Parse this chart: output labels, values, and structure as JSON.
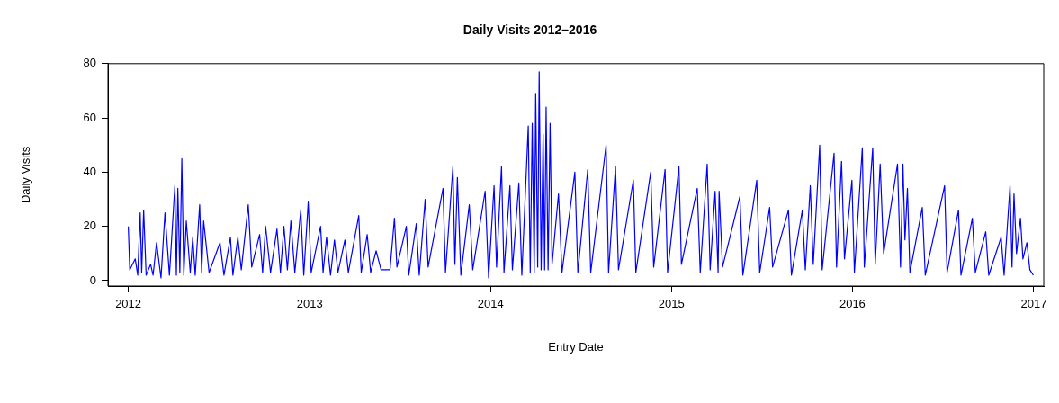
{
  "chart_data": {
    "type": "line",
    "title": "Daily Visits 2012–2016",
    "xlabel": "Entry Date",
    "ylabel": "Daily Visits",
    "xlim": [
      "2011-11-21",
      "2017-01-21"
    ],
    "ylim": [
      -2,
      80
    ],
    "yticks": [
      0,
      20,
      40,
      60,
      80
    ],
    "xticks": [
      {
        "value": "2012-01-01",
        "label": "2012"
      },
      {
        "value": "2013-01-01",
        "label": "2013"
      },
      {
        "value": "2014-01-01",
        "label": "2014"
      },
      {
        "value": "2015-01-01",
        "label": "2015"
      },
      {
        "value": "2016-01-01",
        "label": "2016"
      },
      {
        "value": "2017-01-01",
        "label": "2017"
      }
    ],
    "marker": "none",
    "line_style": "solid",
    "legend": false,
    "series": [
      {
        "color": "#0000ff",
        "x": [
          "2012-01-01",
          "2012-01-04",
          "2012-01-15",
          "2012-01-20",
          "2012-01-25",
          "2012-01-28",
          "2012-02-01",
          "2012-02-06",
          "2012-02-15",
          "2012-02-20",
          "2012-02-27",
          "2012-03-07",
          "2012-03-15",
          "2012-03-24",
          "2012-04-04",
          "2012-04-07",
          "2012-04-10",
          "2012-04-14",
          "2012-04-18",
          "2012-04-22",
          "2012-04-27",
          "2012-05-05",
          "2012-05-10",
          "2012-05-15",
          "2012-05-24",
          "2012-05-28",
          "2012-06-01",
          "2012-06-12",
          "2012-07-04",
          "2012-07-12",
          "2012-07-25",
          "2012-07-30",
          "2012-08-09",
          "2012-08-16",
          "2012-08-30",
          "2012-09-06",
          "2012-09-22",
          "2012-09-28",
          "2012-10-04",
          "2012-10-14",
          "2012-10-27",
          "2012-11-03",
          "2012-11-10",
          "2012-11-17",
          "2012-11-24",
          "2012-12-02",
          "2012-12-14",
          "2012-12-20",
          "2012-12-29",
          "2013-01-04",
          "2013-01-23",
          "2013-01-28",
          "2013-02-04",
          "2013-02-12",
          "2013-02-20",
          "2013-02-27",
          "2013-03-13",
          "2013-03-20",
          "2013-04-10",
          "2013-04-15",
          "2013-04-27",
          "2013-05-04",
          "2013-05-15",
          "2013-05-25",
          "2013-06-12",
          "2013-06-21",
          "2013-06-26",
          "2013-07-15",
          "2013-07-20",
          "2013-08-04",
          "2013-08-10",
          "2013-08-22",
          "2013-08-28",
          "2013-09-27",
          "2013-10-02",
          "2013-10-17",
          "2013-10-21",
          "2013-10-26",
          "2013-11-02",
          "2013-11-19",
          "2013-11-26",
          "2013-12-21",
          "2013-12-28",
          "2014-01-08",
          "2014-01-13",
          "2014-01-23",
          "2014-01-28",
          "2014-02-09",
          "2014-02-14",
          "2014-02-27",
          "2014-03-05",
          "2014-03-18",
          "2014-03-22",
          "2014-03-26",
          "2014-03-30",
          "2014-04-02",
          "2014-04-06",
          "2014-04-09",
          "2014-04-13",
          "2014-04-17",
          "2014-04-20",
          "2014-04-23",
          "2014-04-27",
          "2014-05-01",
          "2014-05-05",
          "2014-05-18",
          "2014-05-25",
          "2014-06-20",
          "2014-06-26",
          "2014-07-16",
          "2014-07-22",
          "2014-08-22",
          "2014-08-27",
          "2014-09-10",
          "2014-09-16",
          "2014-10-16",
          "2014-10-21",
          "2014-11-20",
          "2014-11-26",
          "2014-12-19",
          "2014-12-24",
          "2015-01-16",
          "2015-01-21",
          "2015-02-22",
          "2015-02-28",
          "2015-03-14",
          "2015-03-20",
          "2015-03-30",
          "2015-04-05",
          "2015-04-07",
          "2015-04-14",
          "2015-05-19",
          "2015-05-25",
          "2015-06-22",
          "2015-06-28",
          "2015-07-18",
          "2015-07-24",
          "2015-08-25",
          "2015-08-31",
          "2015-09-22",
          "2015-09-28",
          "2015-10-08",
          "2015-10-14",
          "2015-10-27",
          "2015-11-01",
          "2015-11-25",
          "2015-11-30",
          "2015-12-10",
          "2015-12-16",
          "2015-12-31",
          "2016-01-05",
          "2016-01-21",
          "2016-01-25",
          "2016-02-11",
          "2016-02-16",
          "2016-02-26",
          "2016-03-04",
          "2016-04-01",
          "2016-04-07",
          "2016-04-12",
          "2016-04-16",
          "2016-04-21",
          "2016-04-26",
          "2016-05-21",
          "2016-05-27",
          "2016-07-05",
          "2016-07-10",
          "2016-08-02",
          "2016-08-07",
          "2016-08-30",
          "2016-09-05",
          "2016-09-26",
          "2016-10-02",
          "2016-10-27",
          "2016-11-02",
          "2016-11-14",
          "2016-11-18",
          "2016-11-22",
          "2016-11-27",
          "2016-12-05",
          "2016-12-10",
          "2016-12-18",
          "2016-12-24",
          "2016-12-31"
        ],
        "values": [
          20,
          4,
          8,
          2,
          25,
          3,
          26,
          2,
          6,
          2,
          14,
          1,
          25,
          2,
          35,
          2,
          34,
          3,
          45,
          2,
          22,
          3,
          16,
          2,
          28,
          3,
          22,
          3,
          14,
          2,
          16,
          2,
          16,
          4,
          28,
          5,
          17,
          3,
          20,
          3,
          19,
          3,
          20,
          4,
          22,
          3,
          26,
          2,
          29,
          3,
          20,
          3,
          16,
          2,
          15,
          3,
          15,
          3,
          24,
          3,
          17,
          3,
          11,
          4,
          4,
          23,
          5,
          20,
          2,
          21,
          2,
          30,
          5,
          34,
          3,
          42,
          6,
          38,
          2,
          28,
          4,
          33,
          1,
          35,
          5,
          42,
          3,
          35,
          4,
          36,
          2,
          57,
          3,
          58,
          3,
          69,
          5,
          77,
          4,
          54,
          4,
          64,
          4,
          58,
          6,
          32,
          3,
          40,
          3,
          41,
          3,
          50,
          3,
          42,
          4,
          37,
          3,
          40,
          5,
          41,
          3,
          42,
          6,
          34,
          3,
          43,
          4,
          33,
          3,
          33,
          5,
          31,
          2,
          37,
          3,
          27,
          5,
          26,
          2,
          26,
          4,
          35,
          6,
          50,
          4,
          47,
          5,
          44,
          8,
          37,
          3,
          49,
          5,
          49,
          6,
          43,
          10,
          43,
          5,
          43,
          15,
          34,
          3,
          27,
          2,
          35,
          3,
          26,
          2,
          23,
          3,
          18,
          2,
          16,
          2,
          35,
          5,
          32,
          10,
          23,
          8,
          14,
          4,
          2
        ]
      }
    ]
  }
}
